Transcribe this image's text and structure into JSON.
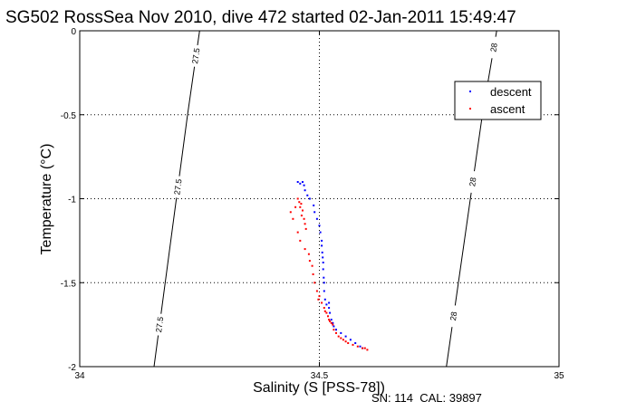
{
  "chart_data": {
    "type": "scatter",
    "title": "SG502 RossSea Nov 2010, dive 472 started 02-Jan-2011 15:49:47",
    "xlabel": "Salinity (S [PSS-78])",
    "ylabel": "Temperature (°C)",
    "xlim": [
      34,
      35
    ],
    "ylim": [
      -2,
      0
    ],
    "x_ticks": [
      34,
      34.5,
      35
    ],
    "x_tick_labels": [
      "34",
      "34.5",
      "35"
    ],
    "y_ticks": [
      -2,
      -1.5,
      -1,
      -0.5,
      0
    ],
    "y_tick_labels": [
      "-2",
      "-1.5",
      "-1",
      "-0.5",
      "0"
    ],
    "grid": true,
    "legend_position": "top-right",
    "footer": "SN: 114  CAL: 39897",
    "colors": {
      "descent": "#0000ff",
      "ascent": "#ff0000"
    },
    "isopycnals": [
      {
        "label": "27.5",
        "points": [
          [
            34.155,
            -2
          ],
          [
            34.225,
            -0.5
          ],
          [
            34.25,
            0
          ]
        ]
      },
      {
        "label": "28",
        "points": [
          [
            34.765,
            -2
          ],
          [
            34.84,
            -0.5
          ],
          [
            34.87,
            0
          ]
        ]
      }
    ],
    "isopycnal_label_positions": [
      {
        "label": "27.5",
        "y": -0.15
      },
      {
        "label": "27.5",
        "y": -0.93
      },
      {
        "label": "27.5",
        "y": -1.75
      },
      {
        "label": "28",
        "y": -0.1
      },
      {
        "label": "28",
        "y": -0.9
      },
      {
        "label": "28",
        "y": -1.7
      }
    ],
    "series": [
      {
        "name": "descent",
        "x": [
          34.455,
          34.46,
          34.465,
          34.468,
          34.47,
          34.475,
          34.48,
          34.488,
          34.49,
          34.495,
          34.5,
          34.502,
          34.505,
          34.505,
          34.506,
          34.507,
          34.508,
          34.508,
          34.509,
          34.51,
          34.51,
          34.512,
          34.515,
          34.52,
          34.52,
          34.522,
          34.525,
          34.528,
          34.53,
          34.535,
          34.545,
          34.555,
          34.565,
          34.575,
          34.585,
          34.59
        ],
        "y": [
          -0.9,
          -0.91,
          -0.9,
          -0.92,
          -0.95,
          -0.98,
          -1.0,
          -1.04,
          -1.08,
          -1.12,
          -1.16,
          -1.2,
          -1.25,
          -1.28,
          -1.32,
          -1.35,
          -1.38,
          -1.42,
          -1.47,
          -1.5,
          -1.55,
          -1.6,
          -1.63,
          -1.62,
          -1.65,
          -1.68,
          -1.72,
          -1.74,
          -1.76,
          -1.78,
          -1.8,
          -1.82,
          -1.84,
          -1.86,
          -1.88,
          -1.89
        ]
      },
      {
        "name": "ascent",
        "x": [
          34.455,
          34.458,
          34.46,
          34.462,
          34.463,
          34.465,
          34.468,
          34.47,
          34.472,
          34.44,
          34.445,
          34.45,
          34.455,
          34.46,
          34.47,
          34.478,
          34.48,
          34.485,
          34.487,
          34.49,
          34.495,
          34.5,
          34.498,
          34.505,
          34.51,
          34.512,
          34.515,
          34.518,
          34.52,
          34.522,
          34.525,
          34.528,
          34.53,
          34.535,
          34.54,
          34.545,
          34.55,
          34.555,
          34.56,
          34.57,
          34.58,
          34.59,
          34.595,
          34.6
        ],
        "y": [
          -1.0,
          -1.02,
          -1.05,
          -1.03,
          -1.1,
          -1.07,
          -1.12,
          -1.15,
          -1.18,
          -1.08,
          -1.12,
          -1.05,
          -1.2,
          -1.25,
          -1.3,
          -1.33,
          -1.37,
          -1.4,
          -1.45,
          -1.5,
          -1.55,
          -1.58,
          -1.6,
          -1.62,
          -1.65,
          -1.67,
          -1.68,
          -1.7,
          -1.72,
          -1.73,
          -1.74,
          -1.75,
          -1.78,
          -1.8,
          -1.82,
          -1.83,
          -1.84,
          -1.85,
          -1.86,
          -1.87,
          -1.88,
          -1.89,
          -1.89,
          -1.9
        ]
      }
    ]
  }
}
